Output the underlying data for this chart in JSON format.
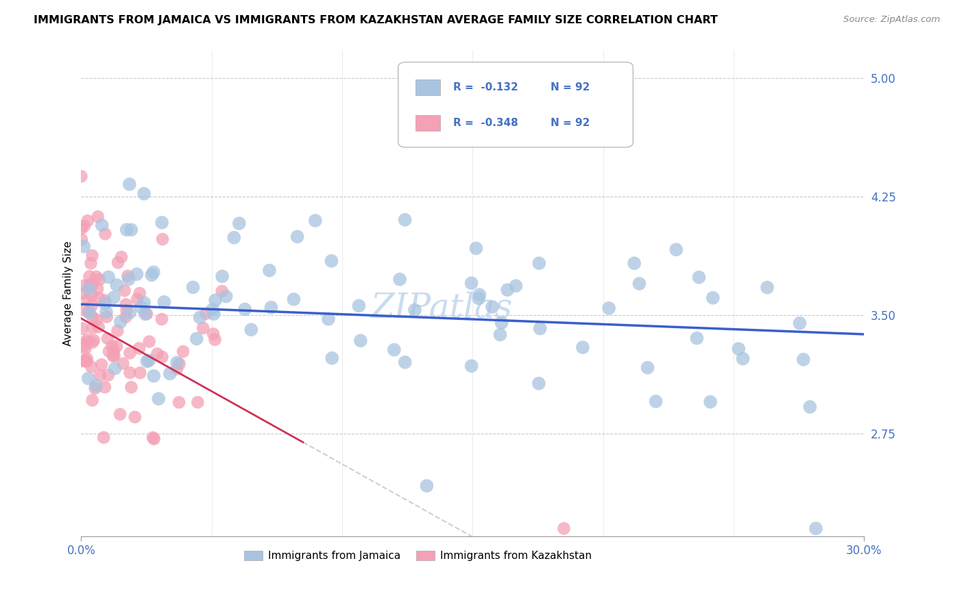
{
  "title": "IMMIGRANTS FROM JAMAICA VS IMMIGRANTS FROM KAZAKHSTAN AVERAGE FAMILY SIZE CORRELATION CHART",
  "source": "Source: ZipAtlas.com",
  "ylabel": "Average Family Size",
  "yticks": [
    2.75,
    3.5,
    4.25,
    5.0
  ],
  "xmin": 0.0,
  "xmax": 0.3,
  "ymin": 2.1,
  "ymax": 5.18,
  "jamaica_color": "#a8c4e0",
  "kazakhstan_color": "#f4a0b5",
  "trend_jamaica_color": "#3a5fcd",
  "trend_kazakhstan_color": "#cc3355",
  "axis_color": "#4472c4",
  "grid_color": "#c8c8c8",
  "title_fontsize": 11.5,
  "source_fontsize": 9.5,
  "tick_fontsize": 12,
  "label_fontsize": 11,
  "legend_r_jamaica": "R = -0.132",
  "legend_n_jamaica": "N = 92",
  "legend_r_kazakhstan": "R = -0.348",
  "legend_n_kazakhstan": "N = 92",
  "jamaica_r": -0.132,
  "jamaica_n": 92,
  "kazakhstan_r": -0.348,
  "kazakhstan_n": 92,
  "watermark": "ZIPatlas",
  "watermark_color": "#c5d8ee"
}
